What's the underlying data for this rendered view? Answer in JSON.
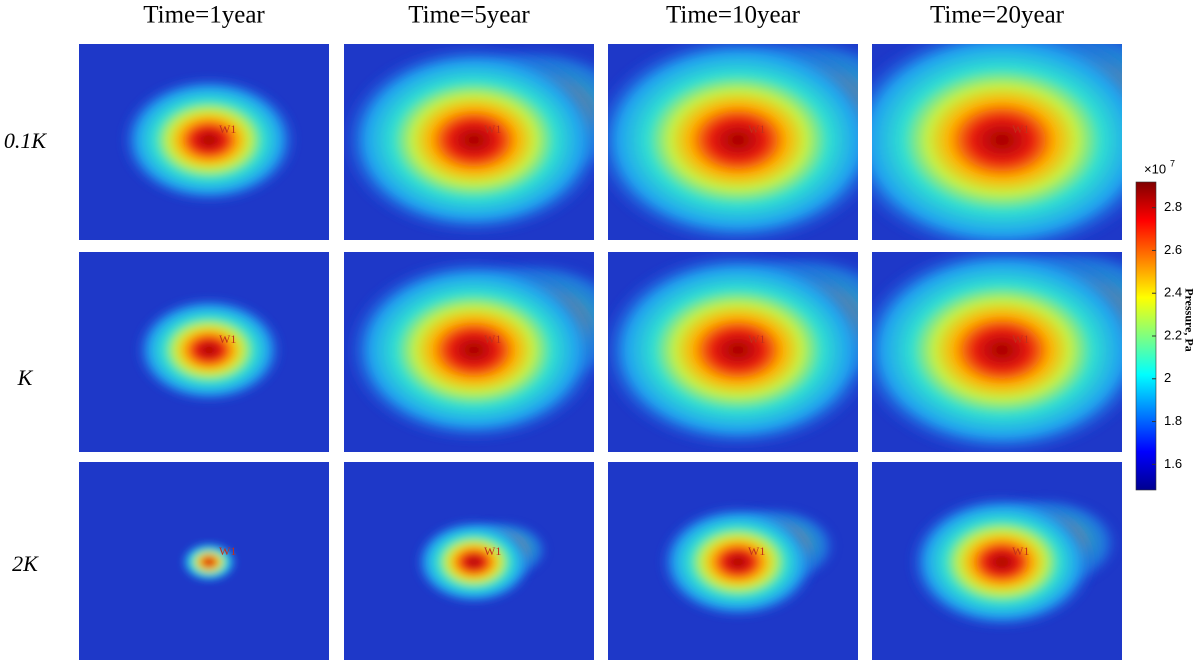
{
  "figure": {
    "columns": [
      "Time=1year",
      "Time=5year",
      "Time=10year",
      "Time=20year"
    ],
    "rows": [
      "0.1K",
      "K",
      "2K"
    ],
    "well_label": "W1",
    "colorbar": {
      "label": "Pressure, Pa",
      "multiplier": "×10",
      "exponent": 7,
      "lim": [
        1.48,
        2.92
      ],
      "ticks": [
        1.6,
        1.8,
        2,
        2.2,
        2.4,
        2.6,
        2.8
      ]
    }
  }
}
